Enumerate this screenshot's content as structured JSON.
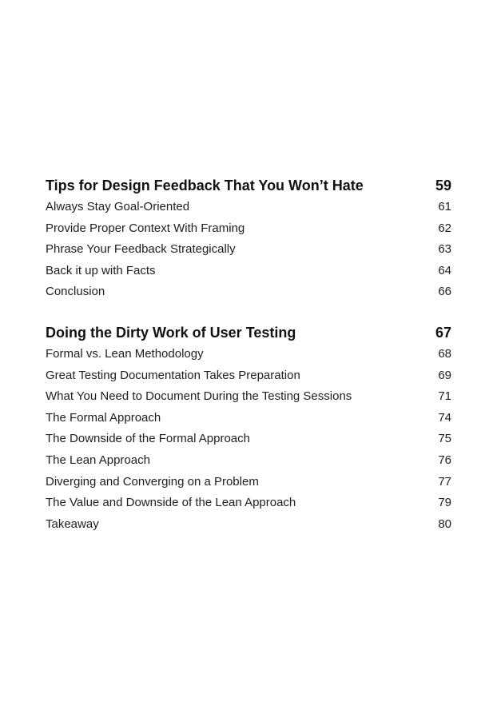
{
  "chapters": [
    {
      "title": "Tips for Design Feedback That You Won’t Hate",
      "page": "59",
      "sections": [
        {
          "title": "Always Stay Goal-Oriented",
          "page": "61"
        },
        {
          "title": "Provide Proper Context With Framing",
          "page": "62"
        },
        {
          "title": "Phrase Your Feedback Strategically",
          "page": "63"
        },
        {
          "title": "Back it up with Facts",
          "page": "64"
        },
        {
          "title": "Conclusion",
          "page": "66"
        }
      ]
    },
    {
      "title": "Doing the Dirty Work of User Testing",
      "page": "67",
      "sections": [
        {
          "title": "Formal vs. Lean Methodology",
          "page": "68"
        },
        {
          "title": "Great Testing Documentation Takes Preparation",
          "page": "69"
        },
        {
          "title": "What You Need to Document During the Testing Sessions",
          "page": "71"
        },
        {
          "title": "The Formal Approach",
          "page": "74"
        },
        {
          "title": "The Downside of the Formal Approach",
          "page": "75"
        },
        {
          "title": "The Lean Approach",
          "page": "76"
        },
        {
          "title": "Diverging and Converging on a Problem",
          "page": "77"
        },
        {
          "title": "The Value and Downside of the Lean Approach",
          "page": "79"
        },
        {
          "title": "Takeaway",
          "page": "80"
        }
      ]
    }
  ]
}
